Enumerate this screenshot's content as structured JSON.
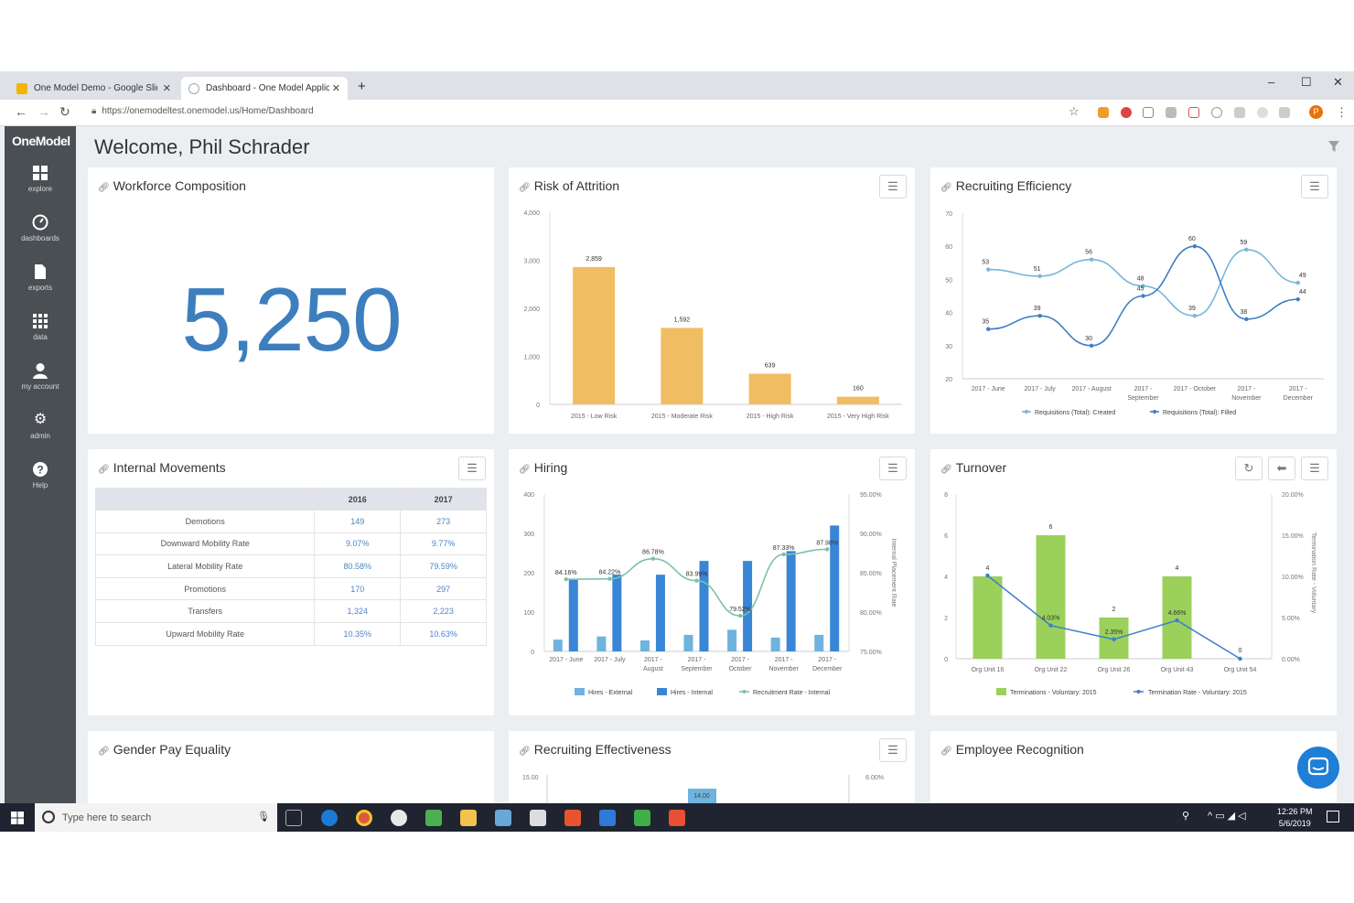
{
  "browser": {
    "tabs": [
      {
        "label": "One Model Demo - Google Slides",
        "color": "#f4b400"
      },
      {
        "label": "Dashboard - One Model Application",
        "color": "#9aa7b4"
      }
    ],
    "new_tab": "+",
    "url": "https://onemodeltest.onemodel.us/Home/Dashboard",
    "profile_initial": "P"
  },
  "sidebar": {
    "logo": "OneModel",
    "items": [
      {
        "label": "explore",
        "icon": "grid-icon"
      },
      {
        "label": "dashboards",
        "icon": "gauge-icon"
      },
      {
        "label": "exports",
        "icon": "file-icon"
      },
      {
        "label": "data",
        "icon": "table-grid-icon"
      },
      {
        "label": "my account",
        "icon": "user-icon"
      },
      {
        "label": "admin",
        "icon": "gear-icon"
      },
      {
        "label": "Help",
        "icon": "help-icon"
      }
    ]
  },
  "header": {
    "welcome": "Welcome, Phil Schrader"
  },
  "cards": {
    "workforce": {
      "title": "Workforce Composition",
      "value": "5,250"
    },
    "attrition": {
      "title": "Risk of Attrition"
    },
    "recruiting_eff": {
      "title": "Recruiting Efficiency"
    },
    "internal_movements": {
      "title": "Internal Movements"
    },
    "hiring": {
      "title": "Hiring"
    },
    "turnover": {
      "title": "Turnover"
    },
    "gender_pay": {
      "title": "Gender Pay Equality"
    },
    "recruiting_effectiveness": {
      "title": "Recruiting Effectiveness"
    },
    "recognition": {
      "title": "Employee Recognition"
    }
  },
  "internal_movements_table": {
    "columns": [
      "",
      "2016",
      "2017"
    ],
    "rows": [
      [
        "Demotions",
        "149",
        "273"
      ],
      [
        "Downward Mobility Rate",
        "9.07%",
        "9.77%"
      ],
      [
        "Lateral Mobility Rate",
        "80.58%",
        "79.59%"
      ],
      [
        "Promotions",
        "170",
        "297"
      ],
      [
        "Transfers",
        "1,324",
        "2,223"
      ],
      [
        "Upward Mobility Rate",
        "10.35%",
        "10.63%"
      ]
    ]
  },
  "chart_data": [
    {
      "id": "attrition",
      "type": "bar",
      "categories": [
        "2015 - Low Risk",
        "2015 - Moderate Risk",
        "2015 - High Risk",
        "2015 - Very High Risk"
      ],
      "values": [
        2859,
        1592,
        639,
        160
      ],
      "value_labels": [
        "2,859",
        "1,592",
        "639",
        "160"
      ],
      "ylim": [
        0,
        4000
      ],
      "yticks": [
        "0",
        "1,000",
        "2,000",
        "3,000",
        "4,000"
      ],
      "color": "#f0bd62"
    },
    {
      "id": "recruiting_efficiency",
      "type": "line",
      "categories": [
        [
          "2017 - June"
        ],
        [
          "2017 - July"
        ],
        [
          "2017 - August"
        ],
        [
          "2017 -",
          "September"
        ],
        [
          "2017 - October"
        ],
        [
          "2017 -",
          "November"
        ],
        [
          "2017 -",
          "December"
        ]
      ],
      "ylim": [
        20,
        70
      ],
      "yticks": [
        "20",
        "30",
        "40",
        "50",
        "60",
        "70"
      ],
      "series": [
        {
          "name": "Requisitions (Total): Created",
          "values": [
            53,
            51,
            56,
            48,
            39,
            59,
            49
          ],
          "color": "#79b6d6"
        },
        {
          "name": "Requisitions (Total): Filled",
          "values": [
            35,
            39,
            30,
            45,
            60,
            38,
            44
          ],
          "color": "#3c7fc6"
        }
      ]
    },
    {
      "id": "hiring",
      "type": "bar",
      "categories": [
        [
          "2017 - June"
        ],
        [
          "2017 - July"
        ],
        [
          "2017 -",
          "August"
        ],
        [
          "2017 -",
          "September"
        ],
        [
          "2017 -",
          "October"
        ],
        [
          "2017 -",
          "November"
        ],
        [
          "2017 -",
          "December"
        ]
      ],
      "ylim": [
        0,
        400
      ],
      "yticks": [
        "0",
        "100",
        "200",
        "300",
        "400"
      ],
      "y2lim": [
        75,
        95
      ],
      "y2ticks": [
        "75.00%",
        "80.00%",
        "85.00%",
        "90.00%",
        "95.00%"
      ],
      "y2label": "Internal Placement Rate",
      "series": [
        {
          "name": "Hires - External",
          "values": [
            30,
            38,
            28,
            42,
            55,
            35,
            42
          ],
          "color": "#6fb3de"
        },
        {
          "name": "Hires - Internal",
          "values": [
            185,
            195,
            195,
            230,
            230,
            255,
            320
          ],
          "color": "#3a86d6"
        },
        {
          "name": "Recruitment Rate - Internal",
          "values": [
            84.16,
            84.22,
            86.78,
            83.99,
            79.52,
            87.33,
            87.98
          ],
          "value_labels": [
            "84.16%",
            "84.22%",
            "86.78%",
            "83.99%",
            "79.52%",
            "87.33%",
            "87.98%"
          ],
          "color": "#7cc2a7"
        }
      ]
    },
    {
      "id": "turnover",
      "type": "bar",
      "categories": [
        "Org Unit 16",
        "Org Unit 22",
        "Org Unit 26",
        "Org Unit 43",
        "Org Unit 54"
      ],
      "ylim": [
        0,
        8
      ],
      "yticks": [
        "0",
        "2",
        "4",
        "6",
        "8"
      ],
      "y2lim": [
        0,
        20
      ],
      "y2ticks": [
        "0.00%",
        "5.00%",
        "10.00%",
        "15.00%",
        "20.00%"
      ],
      "y2label": "Termination Rate - Voluntary",
      "series": [
        {
          "name": "Terminations - Voluntary: 2015",
          "values": [
            4,
            6,
            2,
            4,
            0
          ],
          "value_labels": [
            "4",
            "6",
            "2",
            "4",
            "0"
          ],
          "color": "#9bd05b"
        },
        {
          "name": "Termination Rate - Voluntary: 2015",
          "values": [
            10.1,
            4.03,
            2.35,
            4.66,
            0
          ],
          "value_labels": [
            "",
            "4.03%",
            "2.35%",
            "4.66%",
            ""
          ],
          "color": "#3c7fc6"
        }
      ]
    },
    {
      "id": "recruiting_effectiveness",
      "type": "bar",
      "yticks": [
        "15.00"
      ],
      "y2ticks": [
        "6.00%"
      ],
      "value_labels": [
        "14.00"
      ]
    }
  ],
  "taskbar": {
    "search_placeholder": "Type here to search",
    "time": "12:26 PM",
    "date": "5/6/2019"
  }
}
